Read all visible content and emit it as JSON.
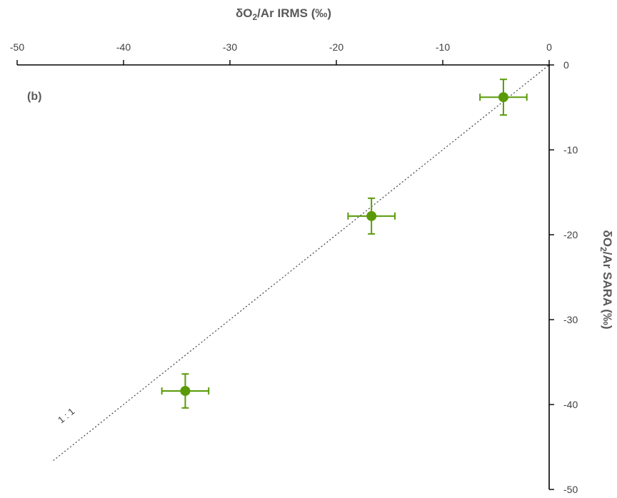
{
  "chart_data": {
    "type": "scatter",
    "panel_label": "(b)",
    "xlabel": {
      "prefix": "δO",
      "sub": "2",
      "suffix": "/Ar IRMS (‰)"
    },
    "ylabel": {
      "prefix": "δO",
      "sub": "2",
      "suffix": "/Ar SARA (‰)"
    },
    "xlim": [
      -50,
      0
    ],
    "ylim": [
      -50,
      0
    ],
    "x_axis_position": "top",
    "y_axis_position": "right",
    "x_ticks": [
      -50,
      -40,
      -30,
      -20,
      -10,
      0
    ],
    "y_ticks": [
      0,
      -10,
      -20,
      -30,
      -40,
      -50
    ],
    "x_tick_labels": [
      "-50",
      "-40",
      "-30",
      "-20",
      "-10",
      "0"
    ],
    "y_tick_labels": [
      "0",
      "-10",
      "-20",
      "-30",
      "-40",
      "-50"
    ],
    "grid": false,
    "color": "#5a9a08",
    "points": [
      {
        "x": -4.3,
        "y": -3.8,
        "xerr": 2.2,
        "yerr": 2.1
      },
      {
        "x": -16.7,
        "y": -17.8,
        "xerr": 2.2,
        "yerr": 2.1
      },
      {
        "x": -34.2,
        "y": -38.4,
        "xerr": 2.2,
        "yerr": 2.0
      }
    ],
    "reference_line": {
      "label": "1 : 1",
      "from": [
        -46.6,
        -46.6
      ],
      "to": [
        0,
        0
      ],
      "style": "dotted",
      "color": "#404040"
    }
  }
}
